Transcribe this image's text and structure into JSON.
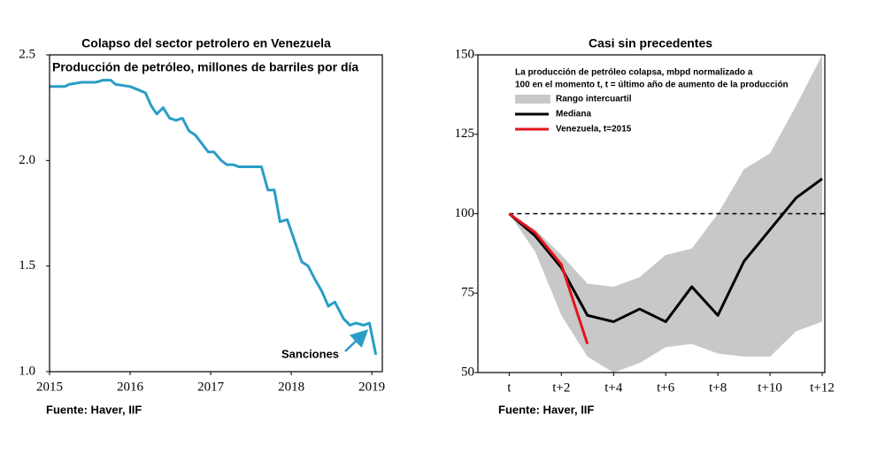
{
  "chart_data": [
    {
      "type": "line",
      "title": "Colapso del sector petrolero en Venezuela",
      "subtitle": "Producción de petróleo, millones de barriles por día",
      "annotation": "Sanciones",
      "source": "Fuente: Haver, IIF",
      "x": [
        2015.0,
        2015.19,
        2015.24,
        2015.4,
        2015.57,
        2015.66,
        2015.76,
        2015.82,
        2016.0,
        2016.13,
        2016.19,
        2016.26,
        2016.33,
        2016.41,
        2016.49,
        2016.57,
        2016.65,
        2016.73,
        2016.81,
        2016.91,
        2016.97,
        2017.04,
        2017.13,
        2017.2,
        2017.28,
        2017.35,
        2017.63,
        2017.71,
        2017.79,
        2017.86,
        2017.95,
        2018.04,
        2018.13,
        2018.21,
        2018.29,
        2018.38,
        2018.46,
        2018.54,
        2018.65,
        2018.73,
        2018.8,
        2018.9,
        2018.97,
        2019.05
      ],
      "series": [
        {
          "color": "#2a9dc6",
          "values": [
            2.35,
            2.35,
            2.36,
            2.37,
            2.37,
            2.38,
            2.38,
            2.36,
            2.35,
            2.33,
            2.32,
            2.26,
            2.22,
            2.25,
            2.2,
            2.19,
            2.2,
            2.14,
            2.12,
            2.07,
            2.04,
            2.04,
            2.0,
            1.98,
            1.98,
            1.97,
            1.97,
            1.86,
            1.86,
            1.71,
            1.72,
            1.62,
            1.52,
            1.5,
            1.44,
            1.38,
            1.31,
            1.33,
            1.25,
            1.22,
            1.23,
            1.22,
            1.23,
            1.08
          ]
        }
      ],
      "xlim": [
        2015,
        2019.13
      ],
      "xticks": [
        2015,
        2016,
        2017,
        2018,
        2019
      ],
      "ylim": [
        1.0,
        2.5
      ],
      "yticks": [
        {
          "value": 1.0,
          "label": "1.0"
        },
        1.5,
        {
          "value": 2.0,
          "label": "2.0"
        },
        2.5
      ],
      "grid": false
    },
    {
      "type": "line",
      "title": "Casi sin precedentes",
      "subtitle": [
        "La producción de petróleo colapsa, mbpd normalizado a",
        "100 en el momento t, t = último año de aumento de la producción"
      ],
      "source": "Fuente: Haver, IIF",
      "x": [
        0,
        1,
        2,
        3,
        4,
        5,
        6,
        7,
        8,
        9,
        10,
        11,
        12
      ],
      "series": [
        {
          "name": "Rango intercuartil",
          "color": "#c8c8c8",
          "upper": [
            100,
            95,
            87,
            78,
            77,
            80,
            87,
            89,
            100,
            114,
            119,
            134,
            150
          ],
          "lower": [
            100,
            88,
            68,
            55,
            50,
            53,
            58,
            59,
            56,
            55,
            55,
            63,
            66
          ]
        },
        {
          "name": "Mediana",
          "color": "#000000",
          "values": [
            100,
            93,
            83,
            68,
            66,
            70,
            66,
            77,
            68,
            85,
            95,
            105,
            111
          ]
        },
        {
          "name": "Venezuela, t=2015",
          "color": "#e3141c",
          "values": [
            100,
            94,
            84,
            59,
            null,
            null,
            null,
            null,
            null,
            null,
            null,
            null,
            null
          ]
        }
      ],
      "ref_line": {
        "y": 100,
        "style": "dashed"
      },
      "xlim": [
        -1.2,
        12.1
      ],
      "xticks": [
        {
          "value": 0,
          "label": "t"
        },
        {
          "value": 2,
          "label": "t+2"
        },
        {
          "value": 4,
          "label": "t+4"
        },
        {
          "value": 6,
          "label": "t+6"
        },
        {
          "value": 8,
          "label": "t+8"
        },
        {
          "value": 10,
          "label": "t+10"
        },
        {
          "value": 12,
          "label": "t+12"
        }
      ],
      "ylim": [
        50,
        150
      ],
      "yticks": [
        50,
        75,
        100,
        125,
        150
      ],
      "grid": false
    }
  ]
}
